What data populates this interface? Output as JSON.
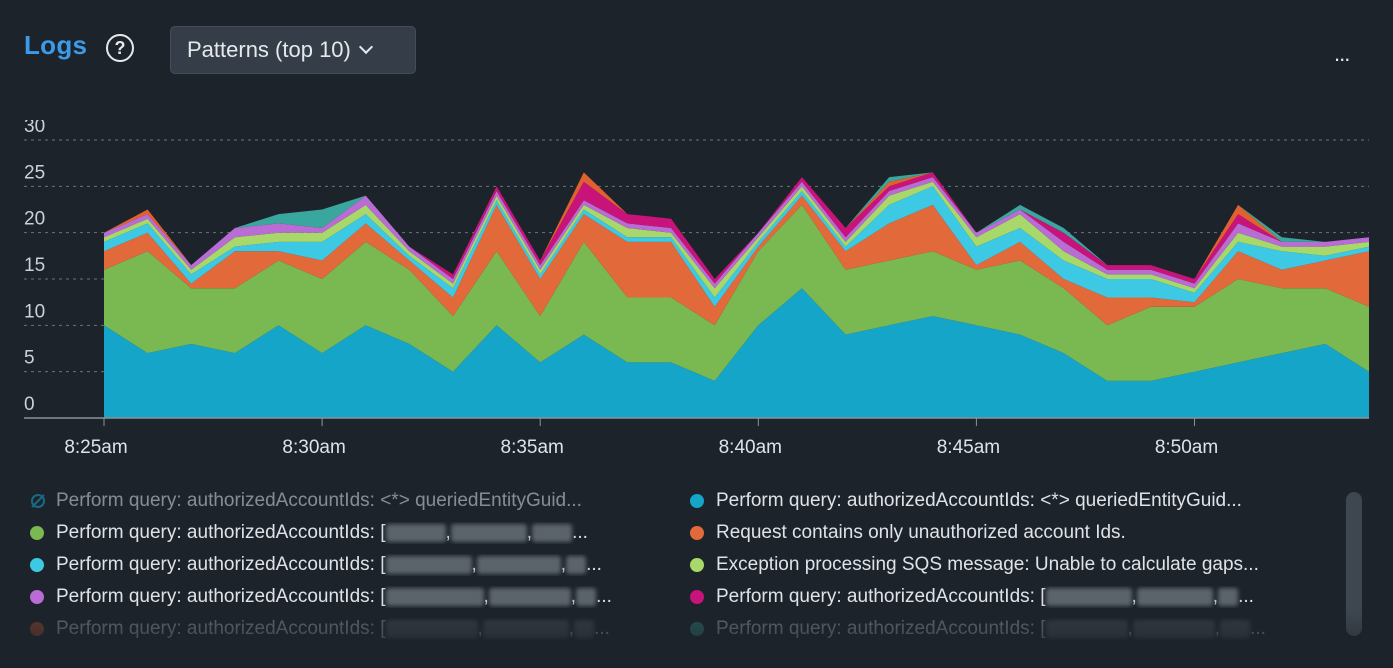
{
  "header": {
    "title": "Logs",
    "help_icon": "question-circle-icon",
    "dropdown_label": "Patterns (top 10)",
    "more_icon": "ellipsis-icon",
    "more_label": "..."
  },
  "chart_data": {
    "type": "area",
    "stacked": true,
    "x": [
      "8:25",
      "8:26",
      "8:27",
      "8:28",
      "8:29",
      "8:30",
      "8:31",
      "8:32",
      "8:33",
      "8:34",
      "8:35",
      "8:36",
      "8:37",
      "8:38",
      "8:39",
      "8:40",
      "8:41",
      "8:42",
      "8:43",
      "8:44",
      "8:45",
      "8:46",
      "8:47",
      "8:48",
      "8:49",
      "8:50",
      "8:51",
      "8:52",
      "8:53",
      "8:54"
    ],
    "xticks": [
      "8:25am",
      "8:30am",
      "8:35am",
      "8:40am",
      "8:45am",
      "8:50am"
    ],
    "ylim": [
      0,
      30
    ],
    "yticks": [
      0,
      5,
      10,
      15,
      20,
      25,
      30
    ],
    "grid": true,
    "series": [
      {
        "name": "Perform query: authorizedAccountIds: <*> queriedEntityGuid...",
        "color": "#14a5c9",
        "values": [
          10,
          7,
          8,
          7,
          10,
          7,
          10,
          8,
          5,
          10,
          6,
          9,
          6,
          6,
          4,
          10,
          14,
          9,
          10,
          11,
          10,
          9,
          7,
          4,
          4,
          5,
          6,
          7,
          8,
          5
        ]
      },
      {
        "name": "Perform query: authorizedAccountIds: [...",
        "color": "#7ab852",
        "values": [
          6,
          11,
          6,
          7,
          7,
          8,
          9,
          8,
          6,
          8,
          5,
          10,
          7,
          7,
          6,
          8,
          9,
          7,
          7,
          7,
          6,
          8,
          7,
          6,
          8,
          7,
          9,
          7,
          6,
          7
        ]
      },
      {
        "name": "Request contains only unauthorized account Ids.",
        "color": "#e26a3a",
        "values": [
          2,
          2,
          0.5,
          4,
          1,
          2,
          2,
          1,
          2,
          5,
          4,
          3,
          6,
          6,
          2,
          0.5,
          1,
          2,
          4,
          5,
          0.5,
          2,
          1,
          3,
          1,
          0.5,
          3,
          2,
          3,
          6
        ]
      },
      {
        "name": "Perform query: authorizedAccountIds: [...",
        "color": "#3dc8e4",
        "values": [
          1,
          1,
          1,
          0.5,
          1,
          2,
          1,
          0.5,
          1,
          0.5,
          0.5,
          0.5,
          0.5,
          0.5,
          1,
          0.5,
          0.5,
          0.5,
          2,
          2,
          2,
          1.5,
          2,
          2,
          2,
          1,
          1,
          2,
          0.5,
          0.5
        ]
      },
      {
        "name": "Exception processing SQS message: Unable to calculate gaps...",
        "color": "#a8d86a",
        "values": [
          0.5,
          0.5,
          0.5,
          1,
          1,
          1,
          1,
          0.5,
          0.5,
          0.5,
          0.5,
          0.5,
          1,
          0.5,
          1,
          0.5,
          0.5,
          0.5,
          1,
          0.5,
          1,
          1.5,
          1,
          0.5,
          0.5,
          0.5,
          1,
          0.5,
          1,
          0.5
        ]
      },
      {
        "name": "Perform query: authorizedAccountIds: [...",
        "color": "#b86cd4",
        "values": [
          0.5,
          0.5,
          0.5,
          1,
          1,
          0.5,
          1,
          0.5,
          0.5,
          0.5,
          0.5,
          0.5,
          0.5,
          0.5,
          0.5,
          0.5,
          0.5,
          0.5,
          0.5,
          0.5,
          0.5,
          0.5,
          1,
          0.5,
          0.5,
          0.5,
          1,
          0.5,
          0.5,
          0.5
        ]
      },
      {
        "name": "Perform query: authorizedAccountIds: [...",
        "color": "#c8137a",
        "values": [
          0,
          0,
          0,
          0,
          0,
          0,
          0,
          0,
          0.5,
          0.5,
          0.5,
          2,
          1,
          1,
          0.5,
          0,
          0.5,
          1,
          0.5,
          0.5,
          0,
          0,
          1,
          0.5,
          0.5,
          0.5,
          1,
          0,
          0,
          0
        ]
      },
      {
        "name": "Perform query: authorizedAccountIds: [...",
        "color": "#e06030",
        "values": [
          0,
          0.5,
          0,
          0,
          0,
          0,
          0,
          0,
          0,
          0,
          0,
          1,
          0,
          0,
          0,
          0,
          0,
          0,
          0.5,
          0,
          0,
          0,
          0,
          0,
          0,
          0,
          1,
          0,
          0,
          0
        ]
      },
      {
        "name": "Perform query: authorizedAccountIds: [...",
        "color": "#3aa79e",
        "values": [
          0,
          0,
          0,
          0,
          1,
          2,
          0,
          0,
          0,
          0,
          0,
          0,
          0,
          0,
          0,
          0,
          0,
          0,
          0.5,
          0,
          0,
          0.5,
          0.5,
          0,
          0,
          0,
          0,
          0.5,
          0,
          0
        ]
      }
    ]
  },
  "legend": [
    {
      "text": "Perform query: authorizedAccountIds: <*> queriedEntityGuid...",
      "color": "#14a5c9",
      "hidden": true,
      "col": 0,
      "row": 0
    },
    {
      "text": "Perform query: authorizedAccountIds: <*> queriedEntityGuid...",
      "color": "#14a5c9",
      "col": 1,
      "row": 0
    },
    {
      "text": "Perform query: authorizedAccountIds: [",
      "color": "#7ab852",
      "col": 0,
      "row": 1,
      "redacted": [
        60,
        76,
        40
      ]
    },
    {
      "text": "Request contains only unauthorized account Ids.",
      "color": "#e26a3a",
      "col": 1,
      "row": 1
    },
    {
      "text": "Perform query: authorizedAccountIds: [",
      "color": "#3dc8e4",
      "col": 0,
      "row": 2,
      "redacted": [
        86,
        84,
        20
      ]
    },
    {
      "text": "Exception processing SQS message: Unable to calculate gaps...",
      "color": "#a8d86a",
      "col": 1,
      "row": 2
    },
    {
      "text": "Perform query: authorizedAccountIds: [",
      "color": "#b86cd4",
      "col": 0,
      "row": 3,
      "redacted": [
        98,
        82,
        20
      ]
    },
    {
      "text": "Perform query: authorizedAccountIds: [",
      "color": "#c8137a",
      "col": 1,
      "row": 3,
      "redacted": [
        86,
        76,
        20
      ]
    },
    {
      "text": "Perform query: authorizedAccountIds: [",
      "color": "#e06030",
      "col": 0,
      "row": 4,
      "redacted": [
        92,
        86,
        20
      ],
      "dim": true
    },
    {
      "text": "Perform query: authorizedAccountIds: [",
      "color": "#3aa79e",
      "col": 1,
      "row": 4,
      "redacted": [
        82,
        82,
        30
      ],
      "dim": true
    }
  ]
}
